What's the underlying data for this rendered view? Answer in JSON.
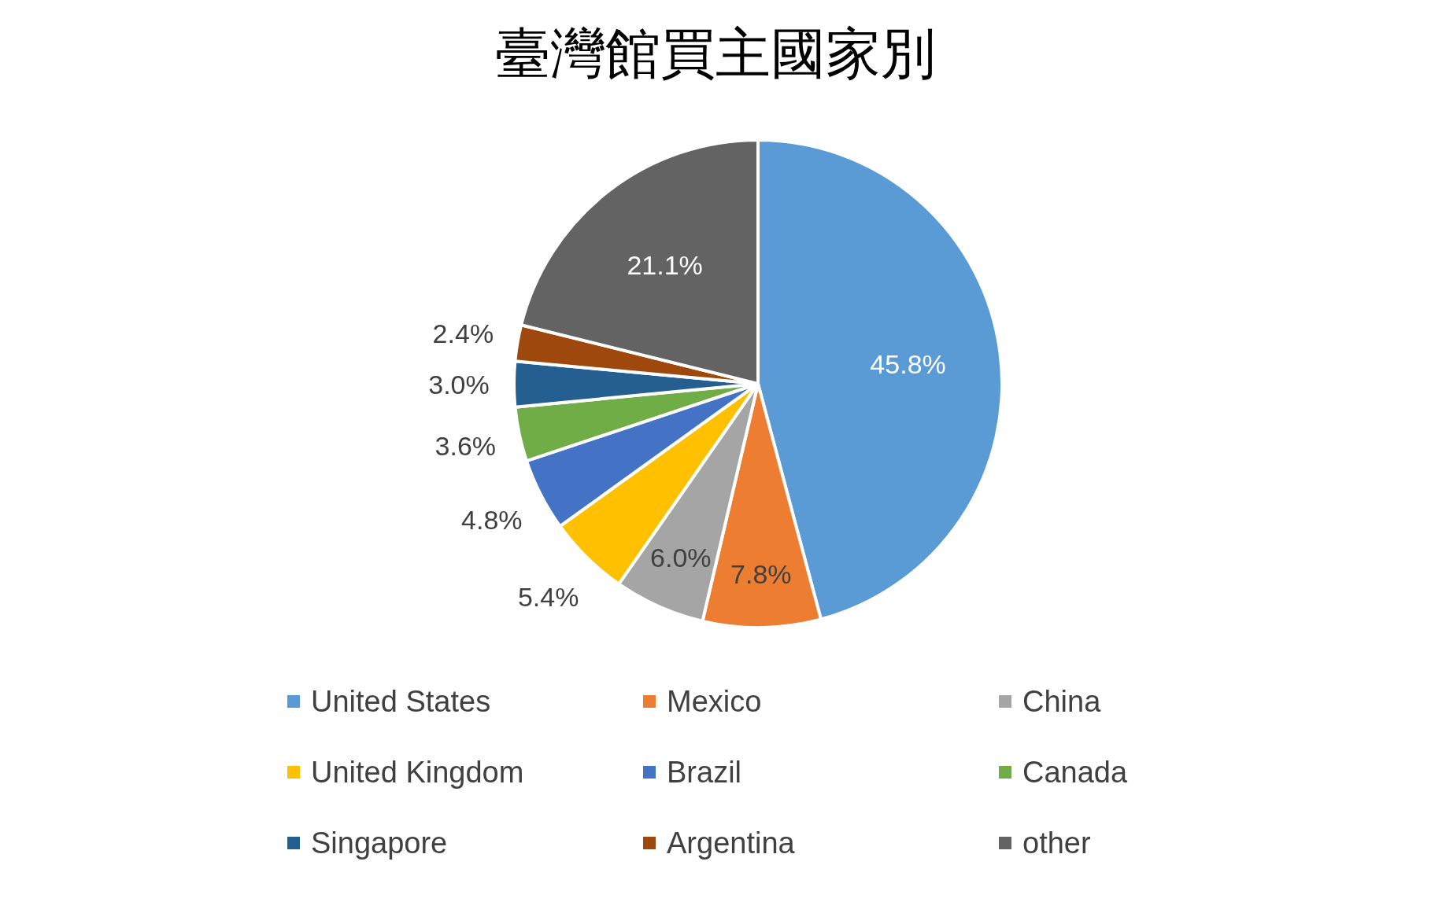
{
  "chart_data": {
    "type": "pie",
    "title": "臺灣館買主國家別",
    "categories": [
      "United States",
      "Mexico",
      "China",
      "United Kingdom",
      "Brazil",
      "Canada",
      "Singapore",
      "Argentina",
      "other"
    ],
    "values": [
      45.8,
      7.8,
      6.0,
      5.4,
      4.8,
      3.6,
      3.0,
      2.4,
      21.1
    ],
    "colors": [
      "#5b9bd5",
      "#ed7d31",
      "#a5a5a5",
      "#ffc000",
      "#4472c4",
      "#70ad47",
      "#255e91",
      "#9e480e",
      "#636363"
    ],
    "value_labels": [
      "45.8%",
      "7.8%",
      "6.0%",
      "5.4%",
      "4.8%",
      "3.6%",
      "3.0%",
      "2.4%",
      "21.1%"
    ],
    "legend": "bottom"
  }
}
